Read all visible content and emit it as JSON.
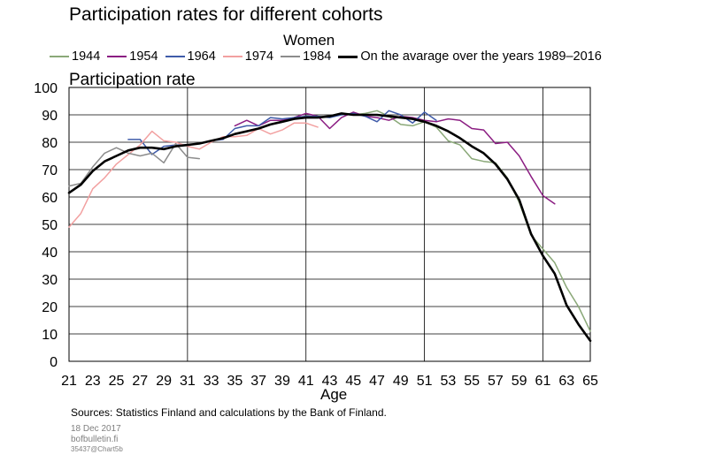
{
  "chart_data": {
    "type": "line",
    "title": "Participation rates for different cohorts",
    "subtitle": "Women",
    "ylabel": "Participation rate",
    "xlabel": "Age",
    "ylim": [
      0,
      100
    ],
    "xlim": [
      21,
      65
    ],
    "yticks": [
      0,
      10,
      20,
      30,
      40,
      50,
      60,
      70,
      80,
      90,
      100
    ],
    "xticks": [
      21,
      23,
      25,
      27,
      29,
      31,
      33,
      35,
      37,
      39,
      41,
      43,
      45,
      47,
      49,
      51,
      53,
      55,
      57,
      59,
      61,
      63,
      65
    ],
    "grid": true,
    "legend_position": "top",
    "series": [
      {
        "name": "1944",
        "color": "#8aa878",
        "width": 1.5,
        "x": [
          45,
          46,
          47,
          48,
          49,
          50,
          51,
          52,
          53,
          54,
          55,
          56,
          57,
          58,
          59,
          60,
          61,
          62,
          63,
          64,
          65
        ],
        "y": [
          90,
          90.5,
          91.5,
          89.5,
          86.5,
          86,
          87.5,
          85.5,
          80.5,
          79,
          74,
          73,
          72.5,
          67,
          58,
          46,
          41,
          36,
          27,
          20,
          11
        ]
      },
      {
        "name": "1954",
        "color": "#8b1d82",
        "width": 1.5,
        "x": [
          35,
          36,
          37,
          38,
          39,
          40,
          41,
          42,
          43,
          44,
          45,
          46,
          47,
          48,
          49,
          50,
          51,
          52,
          53,
          54,
          55,
          56,
          57,
          58,
          59,
          60,
          61,
          62
        ],
        "y": [
          86,
          88,
          86,
          88,
          88,
          89,
          90.5,
          89.5,
          85,
          89,
          91,
          89.5,
          89,
          88,
          89.5,
          89,
          88,
          87.5,
          88.5,
          88,
          85,
          84.5,
          79.5,
          80,
          75,
          67.5,
          60.5,
          57.5
        ]
      },
      {
        "name": "1964",
        "color": "#3f5ba9",
        "width": 1.5,
        "x": [
          26,
          27,
          28,
          29,
          30,
          31,
          32,
          33,
          34,
          35,
          36,
          37,
          38,
          39,
          40,
          41,
          42,
          43,
          44,
          45,
          46,
          47,
          48,
          49,
          50,
          51,
          52
        ],
        "y": [
          81,
          81,
          75.5,
          78.5,
          79,
          79,
          79.5,
          80.5,
          81,
          85,
          86,
          86,
          89,
          88.5,
          89,
          89.5,
          89.5,
          89,
          90,
          90.5,
          89.5,
          87.5,
          91.5,
          90,
          87,
          91,
          88
        ]
      },
      {
        "name": "1974",
        "color": "#f2a0a0",
        "width": 1.5,
        "x": [
          21,
          22,
          23,
          24,
          25,
          26,
          27,
          28,
          29,
          30,
          31,
          32,
          33,
          34,
          35,
          36,
          37,
          38,
          39,
          40,
          41,
          42
        ],
        "y": [
          49,
          54,
          63,
          67,
          72,
          75.5,
          79,
          84,
          80.5,
          80,
          78.5,
          77.5,
          80,
          82,
          82,
          82.5,
          85,
          83,
          84.5,
          87,
          87,
          85.5
        ]
      },
      {
        "name": "1984",
        "color": "#8c8c8c",
        "width": 1.5,
        "x": [
          21,
          22,
          23,
          24,
          25,
          26,
          27,
          28,
          29,
          30,
          31,
          32
        ],
        "y": [
          64,
          65,
          71,
          76,
          78,
          76,
          75,
          76,
          72.5,
          79.5,
          74.5,
          74
        ]
      },
      {
        "name": "On the avarage over the years 1989–2016",
        "color": "#000000",
        "width": 2.6,
        "x": [
          21,
          22,
          23,
          24,
          25,
          26,
          27,
          28,
          29,
          30,
          31,
          32,
          33,
          34,
          35,
          36,
          37,
          38,
          39,
          40,
          41,
          42,
          43,
          44,
          45,
          46,
          47,
          48,
          49,
          50,
          51,
          52,
          53,
          54,
          55,
          56,
          57,
          58,
          59,
          60,
          61,
          62,
          63,
          64,
          65
        ],
        "y": [
          61.5,
          64.5,
          69.5,
          73,
          75,
          77,
          78,
          78,
          77.5,
          78.5,
          79,
          79.5,
          80.5,
          81.5,
          83,
          84,
          85,
          86.5,
          87.5,
          88.5,
          89,
          89,
          89.5,
          90.5,
          90,
          90,
          90,
          89.5,
          89,
          88.5,
          87.5,
          86,
          84,
          81.5,
          78.5,
          76,
          72,
          66.5,
          59,
          46.5,
          38.5,
          32,
          20.5,
          13.5,
          7.5
        ]
      }
    ]
  },
  "source_text": "Sources: Statistics Finland and calculations by the Bank of Finland.",
  "date_text": "18 Dec 2017",
  "site_text": "bofbulletin.fi",
  "code_text": "35437@Chart5b"
}
